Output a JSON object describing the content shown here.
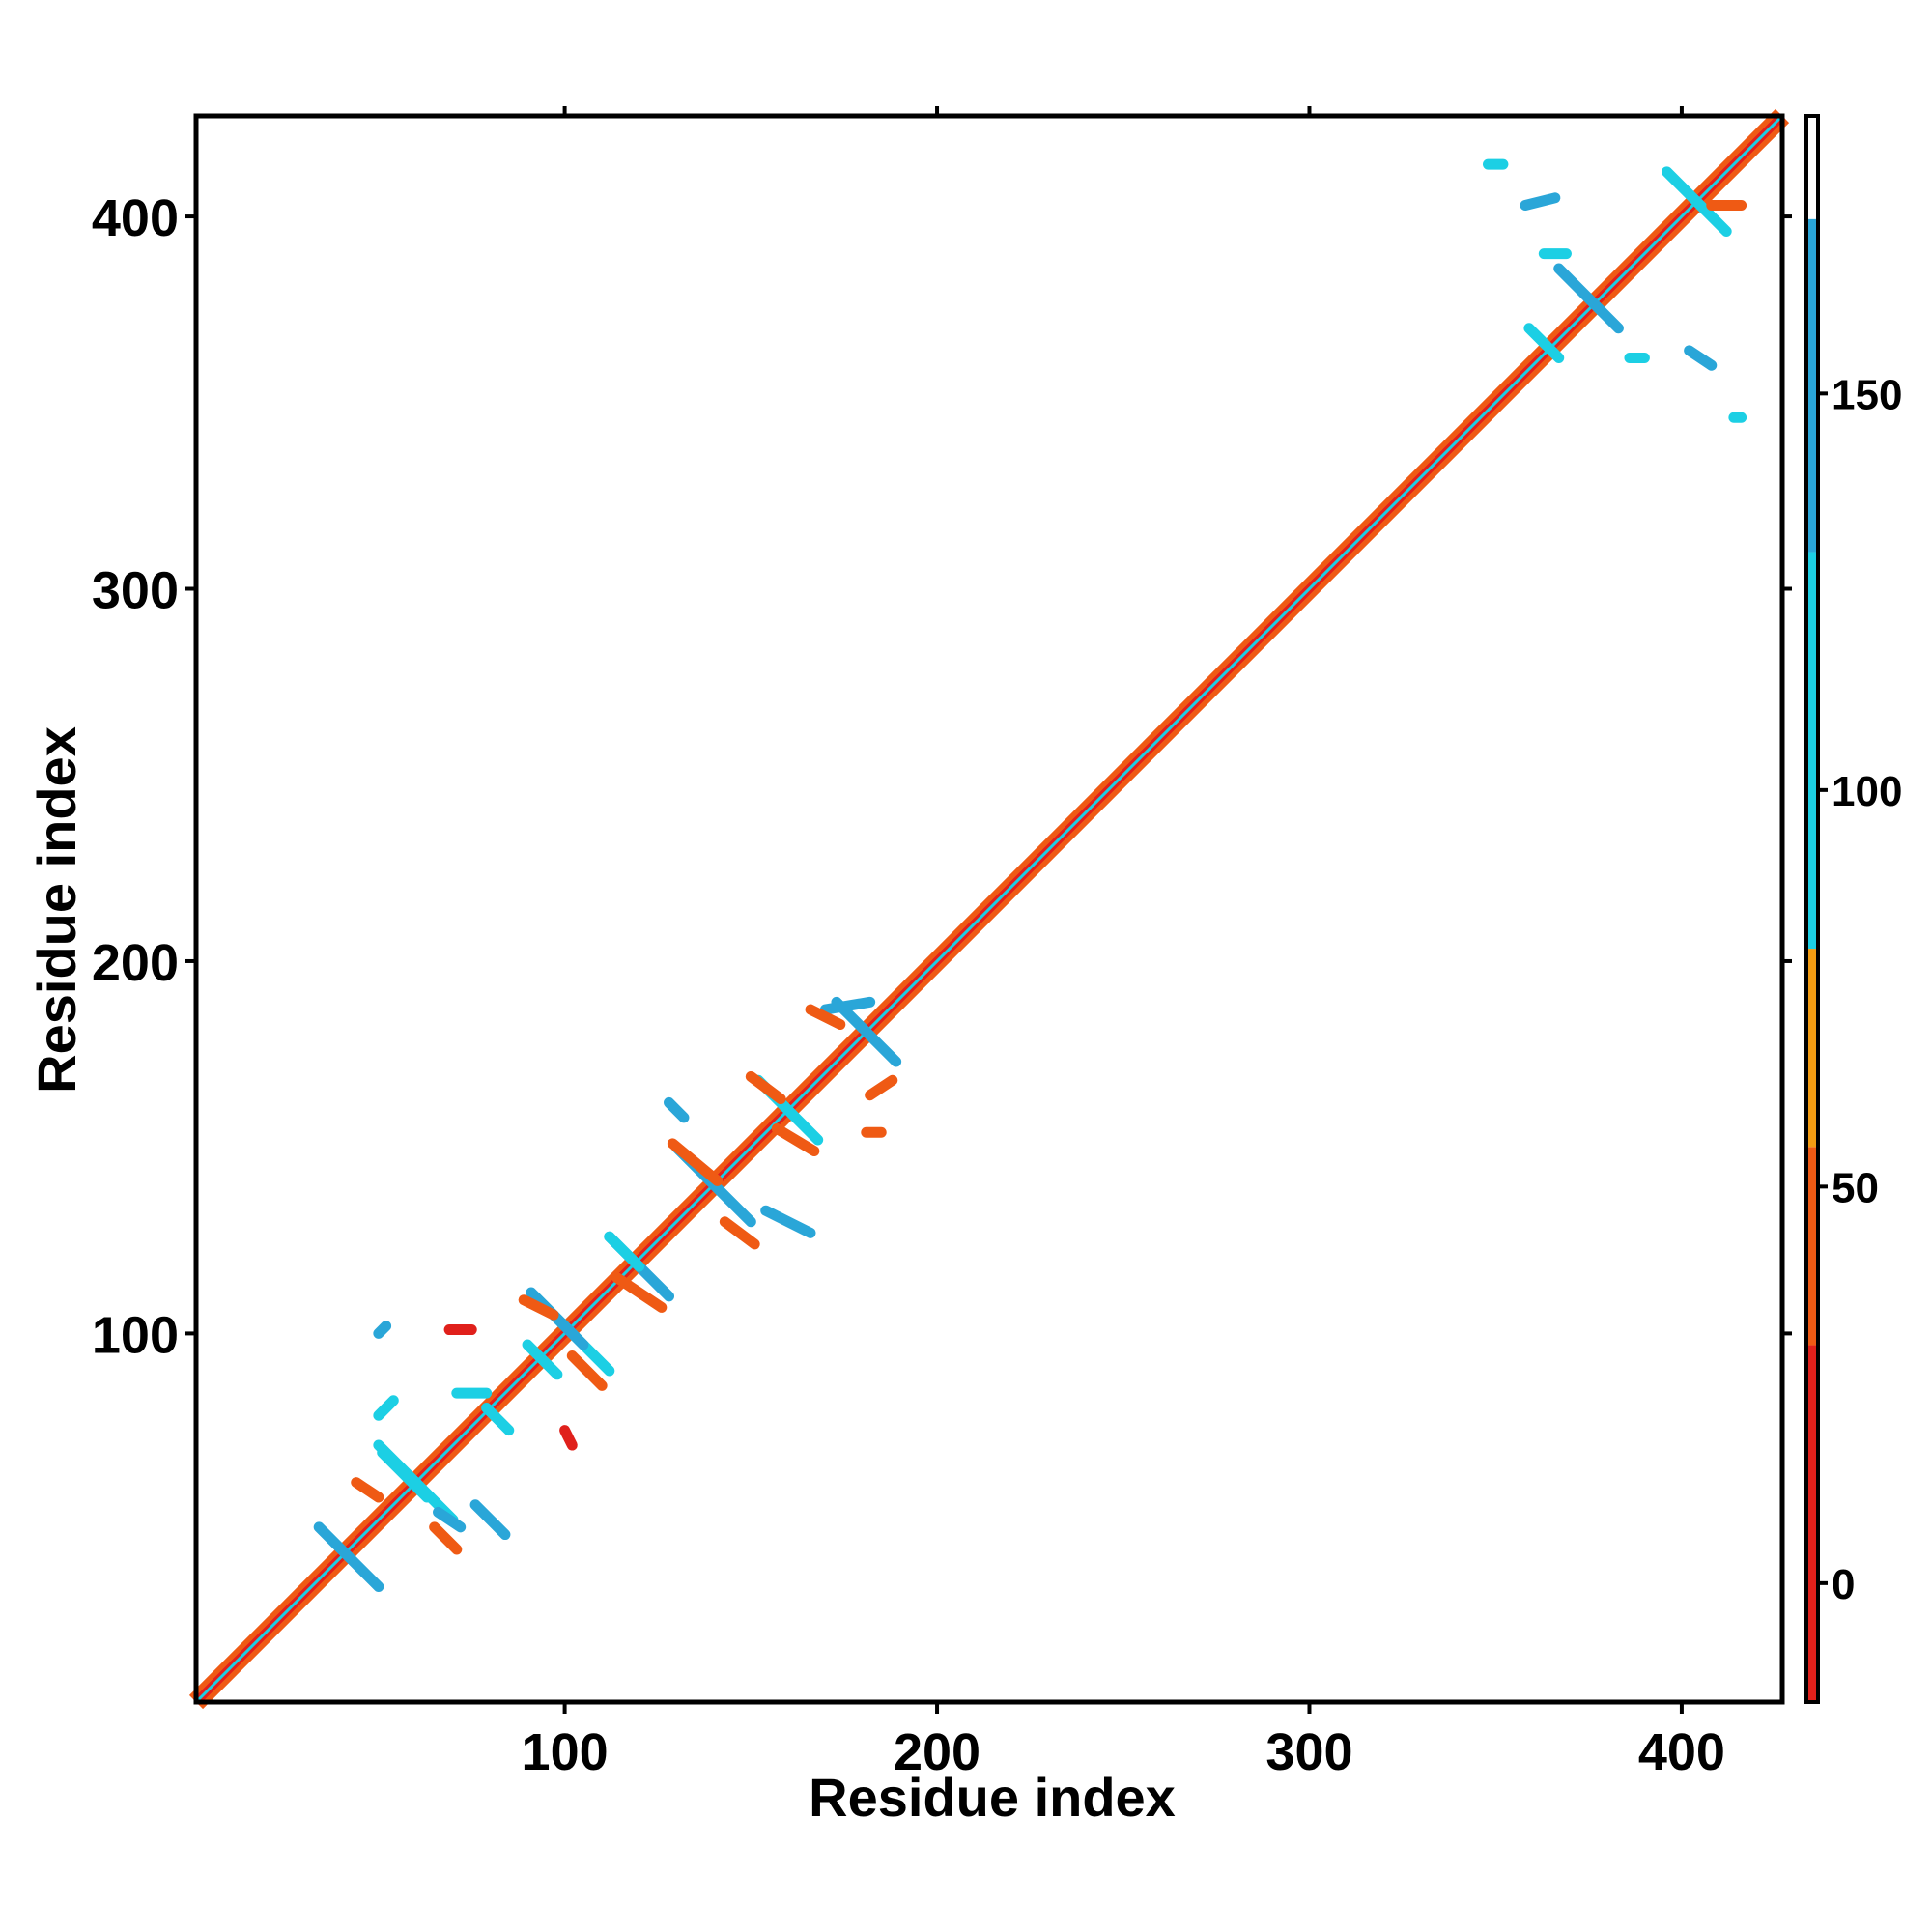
{
  "chart_data": {
    "type": "heatmap",
    "xlabel": "Residue index",
    "ylabel": "Residue index",
    "xlim": [
      1,
      427
    ],
    "ylim": [
      1,
      427
    ],
    "x_ticks": [
      100,
      200,
      300,
      400
    ],
    "x_tick_labels": [
      "100",
      "200",
      "300",
      "400"
    ],
    "y_ticks": [
      100,
      200,
      300,
      400
    ],
    "y_tick_labels": [
      "100",
      "200",
      "300",
      "400"
    ],
    "grid": false,
    "legend": "colorbar-right",
    "diagonal": {
      "from": 1,
      "to": 427
    },
    "colorbar": {
      "range": [
        -15,
        185
      ],
      "ticks": [
        0,
        50,
        100,
        150
      ],
      "tick_labels": [
        "0",
        "50",
        "100",
        "150"
      ],
      "bands": [
        {
          "from": -15,
          "to": 30,
          "color": "#e0201b"
        },
        {
          "from": 30,
          "to": 55,
          "color": "#ef5a14"
        },
        {
          "from": 55,
          "to": 80,
          "color": "#f39c12"
        },
        {
          "from": 80,
          "to": 130,
          "color": "#1ccfe4"
        },
        {
          "from": 130,
          "to": 172,
          "color": "#2aa6d8"
        },
        {
          "from": 172,
          "to": 185,
          "color": "#ffffff"
        }
      ]
    },
    "contacts": [
      {
        "x": 42,
        "y": 40,
        "dx": 8,
        "dy": -8,
        "value": 140
      },
      {
        "x": 60,
        "y": 60,
        "dx": 10,
        "dy": -10,
        "value": 120
      },
      {
        "x": 57,
        "y": 62,
        "dx": -6,
        "dy": 6,
        "value": 110
      },
      {
        "x": 52,
        "y": 80,
        "dx": 2,
        "dy": 2,
        "value": 110
      },
      {
        "x": 51,
        "y": 101,
        "dx": 1,
        "dy": 1,
        "value": 140
      },
      {
        "x": 75,
        "y": 84,
        "dx": 4,
        "dy": 0,
        "value": 120
      },
      {
        "x": 82,
        "y": 77,
        "dx": 3,
        "dy": -3,
        "value": 110
      },
      {
        "x": 80,
        "y": 50,
        "dx": 4,
        "dy": -4,
        "value": 140
      },
      {
        "x": 69,
        "y": 50,
        "dx": 3,
        "dy": -2,
        "value": 140
      },
      {
        "x": 68,
        "y": 45,
        "dx": -3,
        "dy": 3,
        "value": 40
      },
      {
        "x": 47,
        "y": 58,
        "dx": -3,
        "dy": 2,
        "value": 40
      },
      {
        "x": 72,
        "y": 101,
        "dx": 3,
        "dy": 0,
        "value": 20
      },
      {
        "x": 102,
        "y": 100,
        "dx": 10,
        "dy": -10,
        "value": 110
      },
      {
        "x": 98,
        "y": 104,
        "dx": -7,
        "dy": 7,
        "value": 140
      },
      {
        "x": 94,
        "y": 93,
        "dx": -4,
        "dy": 4,
        "value": 120
      },
      {
        "x": 106,
        "y": 90,
        "dx": 4,
        "dy": -4,
        "value": 30
      },
      {
        "x": 93,
        "y": 107,
        "dx": -4,
        "dy": 2,
        "value": 30
      },
      {
        "x": 101,
        "y": 72,
        "dx": 1,
        "dy": -2,
        "value": 20
      },
      {
        "x": 120,
        "y": 118,
        "dx": 8,
        "dy": -8,
        "value": 140
      },
      {
        "x": 116,
        "y": 122,
        "dx": -4,
        "dy": 4,
        "value": 120
      },
      {
        "x": 120,
        "y": 111,
        "dx": 6,
        "dy": -4,
        "value": 30
      },
      {
        "x": 140,
        "y": 140,
        "dx": 10,
        "dy": -10,
        "value": 140
      },
      {
        "x": 135,
        "y": 146,
        "dx": -6,
        "dy": 5,
        "value": 30
      },
      {
        "x": 147,
        "y": 127,
        "dx": 4,
        "dy": -3,
        "value": 30
      },
      {
        "x": 130,
        "y": 160,
        "dx": 2,
        "dy": -2,
        "value": 140
      },
      {
        "x": 160,
        "y": 160,
        "dx": 8,
        "dy": -8,
        "value": 110
      },
      {
        "x": 154,
        "y": 166,
        "dx": -4,
        "dy": 3,
        "value": 30
      },
      {
        "x": 162,
        "y": 152,
        "dx": 5,
        "dy": -3,
        "value": 30
      },
      {
        "x": 160,
        "y": 130,
        "dx": 6,
        "dy": -3,
        "value": 140
      },
      {
        "x": 181,
        "y": 181,
        "dx": 8,
        "dy": -8,
        "value": 140
      },
      {
        "x": 176,
        "y": 188,
        "dx": 6,
        "dy": 1,
        "value": 140
      },
      {
        "x": 170,
        "y": 185,
        "dx": -4,
        "dy": 2,
        "value": 30
      },
      {
        "x": 185,
        "y": 166,
        "dx": 3,
        "dy": 2,
        "value": 30
      },
      {
        "x": 183,
        "y": 154,
        "dx": 2,
        "dy": 0,
        "value": 30
      },
      {
        "x": 375,
        "y": 378,
        "dx": 8,
        "dy": -8,
        "value": 140
      },
      {
        "x": 363,
        "y": 366,
        "dx": -4,
        "dy": 4,
        "value": 120
      },
      {
        "x": 404,
        "y": 404,
        "dx": 8,
        "dy": -8,
        "value": 110
      },
      {
        "x": 412,
        "y": 403,
        "dx": 4,
        "dy": 0,
        "value": 30
      },
      {
        "x": 362,
        "y": 404,
        "dx": 4,
        "dy": 1,
        "value": 140
      },
      {
        "x": 350,
        "y": 414,
        "dx": 2,
        "dy": 0,
        "value": 110
      },
      {
        "x": 405,
        "y": 362,
        "dx": 3,
        "dy": -2,
        "value": 140
      },
      {
        "x": 388,
        "y": 362,
        "dx": 2,
        "dy": 0,
        "value": 110
      },
      {
        "x": 415,
        "y": 346,
        "dx": 1,
        "dy": 0,
        "value": 110
      },
      {
        "x": 366,
        "y": 390,
        "dx": 3,
        "dy": 0,
        "value": 110
      }
    ]
  }
}
